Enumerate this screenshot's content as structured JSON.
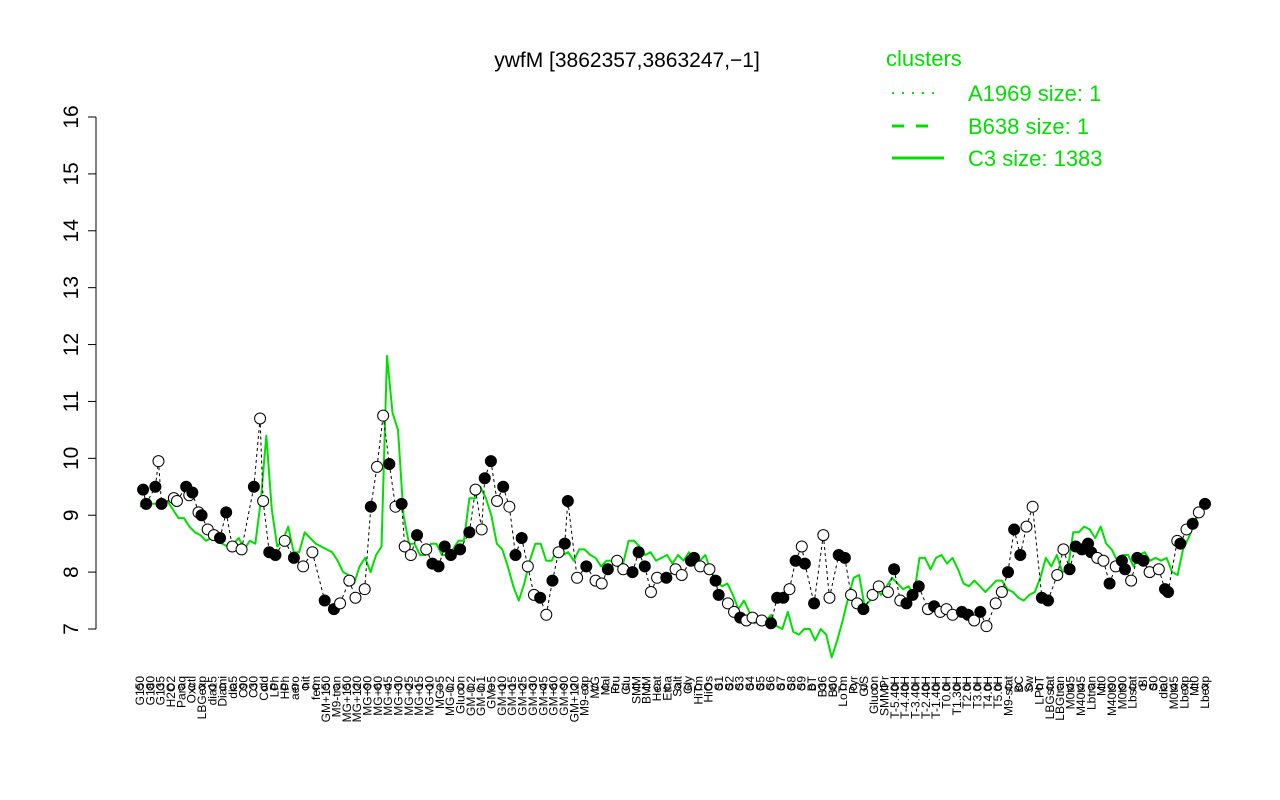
{
  "chart_data": {
    "type": "line",
    "title": "ywfM [3862357,3863247,−1]",
    "xlabel": "",
    "ylabel": "",
    "ylim": [
      7,
      16
    ],
    "yticks": [
      7,
      8,
      9,
      10,
      11,
      12,
      13,
      14,
      15,
      16
    ],
    "grid": false,
    "legend": {
      "position": "top-right",
      "title": "clusters",
      "entries": [
        {
          "label": "A1969 size: 1",
          "style": "dotted"
        },
        {
          "label": "B638 size: 1",
          "style": "dashed"
        },
        {
          "label": "C3 size: 1383",
          "style": "solid"
        }
      ]
    },
    "colors": {
      "series": "#00e000",
      "text": "#000000"
    },
    "x_tick_labels": [
      "G150",
      "G180",
      "G135",
      "H2O2",
      "Paraq",
      "Oxctl",
      "LBGexp",
      "dia15",
      "Diami",
      "dia5",
      "C90",
      "C30",
      "Cold",
      "LPh",
      "HPh",
      "aero",
      "nit",
      "ferm",
      "GM+150",
      "M9-tran",
      "MG+150",
      "MG+120",
      "MG+90",
      "MG+60",
      "MG+45",
      "MG+30",
      "MG+25",
      "MG+15",
      "MG+10",
      "MG+5",
      "MG-0.2",
      "Glucon",
      "GM-0.2",
      "GM-0.1",
      "GM+5",
      "GM+10",
      "GM+15",
      "GM+25",
      "GM+30",
      "GM+45",
      "GM+60",
      "GM+90",
      "GM+120",
      "M9-exp",
      "M/G",
      "Mal",
      "Fru",
      "Glu",
      "SMM",
      "BMM",
      "Heat",
      "Etha",
      "Salt",
      "Gly",
      "HiTm",
      "HiOs",
      "S1",
      "S2",
      "S3",
      "S4",
      "S5",
      "S6",
      "S7",
      "S8",
      "S9",
      "BT",
      "B36",
      "B60",
      "LoTm",
      "Pyr",
      "G/S",
      "Glucon",
      "SMMPr",
      "T-5.40H",
      "T-4.40H",
      "T-3.40H",
      "T-2.40H",
      "T-1.40H",
      "T0.0H",
      "T1.30H",
      "T2.0H",
      "T3.0H",
      "T4.0H",
      "T5.0H",
      "M9-stat",
      "BC",
      "Sw",
      "LPhT",
      "LBGstat",
      "LBGtran",
      "M0t45",
      "M40t45",
      "Lbtran",
      "Mt0",
      "M40t90",
      "M0t90",
      "Lbstat",
      "BI",
      "S0",
      "dia0",
      "M0t45",
      "Lbexp",
      "Mt0",
      "Lbexp"
    ],
    "series": [
      {
        "values": [
          9.15,
          9.2,
          9.2,
          9.2,
          9.15,
          9.25,
          9.1,
          8.95,
          8.95,
          8.8,
          8.7,
          8.65,
          8.55,
          8.6,
          8.55,
          8.5,
          8.45,
          8.5,
          8.6,
          8.4,
          8.55,
          8.5,
          9.25,
          10.4,
          9.1,
          8.45,
          8.55,
          8.8,
          8.35,
          8.35,
          8.7,
          8.6,
          8.5,
          8.45,
          8.4,
          8.35,
          8.2,
          8.0,
          7.95,
          7.8,
          8.1,
          8.25,
          8.0,
          8.3,
          8.45,
          11.8,
          10.8,
          10.5,
          9.0,
          8.5,
          8.5,
          8.3,
          8.3,
          8.5,
          8.5,
          8.3,
          8.3,
          8.4,
          8.55,
          8.55,
          9.3,
          9.3,
          9.5,
          9.3,
          9.0,
          8.5,
          8.4,
          8.1,
          7.75,
          7.5,
          7.8,
          8.2,
          8.5,
          8.5,
          8.2,
          8.2,
          8.4,
          8.3,
          8.35,
          8.2,
          8.4,
          8.4,
          8.3,
          8.25,
          8.1,
          8.2,
          8.2,
          8.1,
          8.15,
          8.55,
          8.55,
          8.45,
          8.3,
          8.35,
          8.2,
          8.25,
          8.3,
          8.15,
          8.3,
          8.2,
          8.35,
          8.2,
          8.2,
          8.3,
          8.0,
          7.85,
          7.75,
          7.8,
          7.6,
          7.35,
          7.5,
          7.3,
          7.1,
          7.2,
          7.15,
          7.25,
          7.05,
          7.0,
          7.3,
          6.95,
          6.9,
          7.0,
          7.0,
          6.8,
          7.0,
          6.9,
          6.5,
          6.8,
          7.15,
          7.55,
          7.9,
          7.95,
          7.4,
          7.5,
          7.75,
          7.6,
          7.75,
          7.9,
          7.8,
          7.7,
          7.75,
          7.6,
          8.25,
          8.25,
          8.05,
          8.25,
          8.3,
          8.15,
          8.25,
          8.05,
          7.8,
          7.75,
          7.85,
          7.75,
          7.65,
          7.75,
          7.85,
          7.85,
          7.7,
          7.65,
          7.55,
          7.5,
          7.6,
          7.65,
          7.9,
          8.25,
          8.1,
          8.3,
          8.0,
          8.05,
          8.7,
          8.7,
          8.8,
          8.75,
          8.6,
          8.8,
          8.5,
          8.4,
          8.2,
          8.3,
          8.3,
          8.1,
          8.3,
          8.35,
          8.2,
          8.25,
          8.2,
          8.25,
          8.0,
          7.95,
          8.4,
          8.6,
          8.85,
          9.05,
          9.25
        ]
      }
    ],
    "markers": [
      {
        "x": 1,
        "y": 9.45,
        "f": 1
      },
      {
        "x": 2,
        "y": 9.2,
        "f": 1
      },
      {
        "x": 5,
        "y": 9.5,
        "f": 1
      },
      {
        "x": 6,
        "y": 9.95,
        "f": 0
      },
      {
        "x": 7,
        "y": 9.2,
        "f": 1
      },
      {
        "x": 11,
        "y": 9.3,
        "f": 0
      },
      {
        "x": 12,
        "y": 9.25,
        "f": 0
      },
      {
        "x": 15,
        "y": 9.5,
        "f": 1
      },
      {
        "x": 16,
        "y": 9.35,
        "f": 0
      },
      {
        "x": 17,
        "y": 9.4,
        "f": 1
      },
      {
        "x": 19,
        "y": 9.05,
        "f": 0
      },
      {
        "x": 20,
        "y": 9.0,
        "f": 1
      },
      {
        "x": 22,
        "y": 8.75,
        "f": 0
      },
      {
        "x": 24,
        "y": 8.65,
        "f": 0
      },
      {
        "x": 26,
        "y": 8.6,
        "f": 1
      },
      {
        "x": 28,
        "y": 9.05,
        "f": 1
      },
      {
        "x": 30,
        "y": 8.45,
        "f": 0
      },
      {
        "x": 33,
        "y": 8.4,
        "f": 0
      },
      {
        "x": 37,
        "y": 9.5,
        "f": 1
      },
      {
        "x": 39,
        "y": 10.7,
        "f": 0
      },
      {
        "x": 40,
        "y": 9.25,
        "f": 0
      },
      {
        "x": 42,
        "y": 8.35,
        "f": 1
      },
      {
        "x": 44,
        "y": 8.3,
        "f": 1
      },
      {
        "x": 47,
        "y": 8.55,
        "f": 0
      },
      {
        "x": 50,
        "y": 8.25,
        "f": 1
      },
      {
        "x": 53,
        "y": 8.1,
        "f": 0
      },
      {
        "x": 56,
        "y": 8.35,
        "f": 0
      },
      {
        "x": 60,
        "y": 7.5,
        "f": 1
      },
      {
        "x": 63,
        "y": 7.35,
        "f": 1
      },
      {
        "x": 65,
        "y": 7.45,
        "f": 0
      },
      {
        "x": 68,
        "y": 7.85,
        "f": 0
      },
      {
        "x": 70,
        "y": 7.55,
        "f": 0
      },
      {
        "x": 73,
        "y": 7.7,
        "f": 0
      },
      {
        "x": 75,
        "y": 9.15,
        "f": 1
      },
      {
        "x": 77,
        "y": 9.85,
        "f": 0
      },
      {
        "x": 79,
        "y": 10.75,
        "f": 0
      },
      {
        "x": 81,
        "y": 9.9,
        "f": 1
      },
      {
        "x": 83,
        "y": 9.15,
        "f": 0
      },
      {
        "x": 85,
        "y": 9.2,
        "f": 1
      },
      {
        "x": 86,
        "y": 8.45,
        "f": 0
      },
      {
        "x": 88,
        "y": 8.3,
        "f": 0
      },
      {
        "x": 90,
        "y": 8.65,
        "f": 1
      },
      {
        "x": 93,
        "y": 8.4,
        "f": 0
      },
      {
        "x": 95,
        "y": 8.15,
        "f": 1
      },
      {
        "x": 97,
        "y": 8.1,
        "f": 1
      },
      {
        "x": 99,
        "y": 8.45,
        "f": 1
      },
      {
        "x": 101,
        "y": 8.3,
        "f": 1
      },
      {
        "x": 104,
        "y": 8.4,
        "f": 1
      },
      {
        "x": 107,
        "y": 8.7,
        "f": 1
      },
      {
        "x": 109,
        "y": 9.45,
        "f": 0
      },
      {
        "x": 111,
        "y": 8.75,
        "f": 0
      },
      {
        "x": 112,
        "y": 9.65,
        "f": 1
      },
      {
        "x": 114,
        "y": 9.95,
        "f": 1
      },
      {
        "x": 116,
        "y": 9.25,
        "f": 0
      },
      {
        "x": 118,
        "y": 9.5,
        "f": 1
      },
      {
        "x": 120,
        "y": 9.15,
        "f": 0
      },
      {
        "x": 122,
        "y": 8.3,
        "f": 1
      },
      {
        "x": 124,
        "y": 8.6,
        "f": 1
      },
      {
        "x": 126,
        "y": 8.1,
        "f": 0
      },
      {
        "x": 128,
        "y": 7.6,
        "f": 0
      },
      {
        "x": 130,
        "y": 7.55,
        "f": 1
      },
      {
        "x": 132,
        "y": 7.25,
        "f": 0
      },
      {
        "x": 134,
        "y": 7.85,
        "f": 1
      },
      {
        "x": 136,
        "y": 8.35,
        "f": 0
      },
      {
        "x": 138,
        "y": 8.5,
        "f": 1
      },
      {
        "x": 139,
        "y": 9.25,
        "f": 1
      },
      {
        "x": 142,
        "y": 7.9,
        "f": 0
      },
      {
        "x": 145,
        "y": 8.1,
        "f": 1
      },
      {
        "x": 148,
        "y": 7.85,
        "f": 0
      },
      {
        "x": 150,
        "y": 7.8,
        "f": 0
      },
      {
        "x": 152,
        "y": 8.05,
        "f": 1
      },
      {
        "x": 155,
        "y": 8.2,
        "f": 0
      },
      {
        "x": 157,
        "y": 8.05,
        "f": 0
      },
      {
        "x": 160,
        "y": 8.0,
        "f": 1
      },
      {
        "x": 162,
        "y": 8.35,
        "f": 1
      },
      {
        "x": 164,
        "y": 8.1,
        "f": 1
      },
      {
        "x": 166,
        "y": 7.65,
        "f": 0
      },
      {
        "x": 168,
        "y": 7.9,
        "f": 0
      },
      {
        "x": 171,
        "y": 7.9,
        "f": 1
      },
      {
        "x": 174,
        "y": 8.05,
        "f": 0
      },
      {
        "x": 176,
        "y": 7.95,
        "f": 0
      },
      {
        "x": 179,
        "y": 8.2,
        "f": 1
      },
      {
        "x": 180,
        "y": 8.25,
        "f": 1
      },
      {
        "x": 182,
        "y": 8.1,
        "f": 0
      },
      {
        "x": 185,
        "y": 8.05,
        "f": 0
      },
      {
        "x": 187,
        "y": 7.85,
        "f": 1
      },
      {
        "x": 188,
        "y": 7.6,
        "f": 1
      },
      {
        "x": 191,
        "y": 7.45,
        "f": 0
      },
      {
        "x": 193,
        "y": 7.3,
        "f": 0
      },
      {
        "x": 195,
        "y": 7.2,
        "f": 1
      },
      {
        "x": 197,
        "y": 7.15,
        "f": 0
      },
      {
        "x": 199,
        "y": 7.2,
        "f": 0
      },
      {
        "x": 202,
        "y": 7.15,
        "f": 0
      },
      {
        "x": 205,
        "y": 7.1,
        "f": 1
      },
      {
        "x": 207,
        "y": 7.55,
        "f": 1
      },
      {
        "x": 209,
        "y": 7.55,
        "f": 1
      },
      {
        "x": 211,
        "y": 7.7,
        "f": 0
      },
      {
        "x": 213,
        "y": 8.2,
        "f": 1
      },
      {
        "x": 215,
        "y": 8.45,
        "f": 0
      },
      {
        "x": 216,
        "y": 8.15,
        "f": 1
      },
      {
        "x": 219,
        "y": 7.45,
        "f": 1
      },
      {
        "x": 222,
        "y": 8.65,
        "f": 0
      },
      {
        "x": 224,
        "y": 7.55,
        "f": 0
      },
      {
        "x": 227,
        "y": 8.3,
        "f": 1
      },
      {
        "x": 229,
        "y": 8.25,
        "f": 1
      },
      {
        "x": 231,
        "y": 7.6,
        "f": 0
      },
      {
        "x": 233,
        "y": 7.45,
        "f": 0
      },
      {
        "x": 235,
        "y": 7.35,
        "f": 1
      },
      {
        "x": 238,
        "y": 7.6,
        "f": 0
      },
      {
        "x": 240,
        "y": 7.75,
        "f": 0
      },
      {
        "x": 243,
        "y": 7.65,
        "f": 0
      },
      {
        "x": 245,
        "y": 8.05,
        "f": 1
      },
      {
        "x": 247,
        "y": 7.5,
        "f": 0
      },
      {
        "x": 249,
        "y": 7.45,
        "f": 1
      },
      {
        "x": 251,
        "y": 7.6,
        "f": 1
      },
      {
        "x": 253,
        "y": 7.75,
        "f": 1
      },
      {
        "x": 256,
        "y": 7.35,
        "f": 0
      },
      {
        "x": 258,
        "y": 7.4,
        "f": 1
      },
      {
        "x": 260,
        "y": 7.3,
        "f": 0
      },
      {
        "x": 262,
        "y": 7.35,
        "f": 0
      },
      {
        "x": 264,
        "y": 7.25,
        "f": 0
      },
      {
        "x": 267,
        "y": 7.3,
        "f": 1
      },
      {
        "x": 269,
        "y": 7.25,
        "f": 1
      },
      {
        "x": 271,
        "y": 7.15,
        "f": 0
      },
      {
        "x": 273,
        "y": 7.3,
        "f": 1
      },
      {
        "x": 275,
        "y": 7.05,
        "f": 0
      },
      {
        "x": 278,
        "y": 7.45,
        "f": 0
      },
      {
        "x": 280,
        "y": 7.65,
        "f": 0
      },
      {
        "x": 282,
        "y": 8.0,
        "f": 1
      },
      {
        "x": 284,
        "y": 8.75,
        "f": 1
      },
      {
        "x": 286,
        "y": 8.3,
        "f": 1
      },
      {
        "x": 288,
        "y": 8.8,
        "f": 0
      },
      {
        "x": 290,
        "y": 9.15,
        "f": 0
      },
      {
        "x": 293,
        "y": 7.55,
        "f": 1
      },
      {
        "x": 295,
        "y": 7.5,
        "f": 1
      },
      {
        "x": 298,
        "y": 7.95,
        "f": 0
      },
      {
        "x": 300,
        "y": 8.4,
        "f": 0
      },
      {
        "x": 302,
        "y": 8.05,
        "f": 1
      },
      {
        "x": 304,
        "y": 8.45,
        "f": 1
      },
      {
        "x": 306,
        "y": 8.4,
        "f": 1
      },
      {
        "x": 308,
        "y": 8.5,
        "f": 1
      },
      {
        "x": 309,
        "y": 8.35,
        "f": 1
      },
      {
        "x": 311,
        "y": 8.25,
        "f": 0
      },
      {
        "x": 313,
        "y": 8.2,
        "f": 0
      },
      {
        "x": 315,
        "y": 7.8,
        "f": 1
      },
      {
        "x": 317,
        "y": 8.1,
        "f": 0
      },
      {
        "x": 319,
        "y": 8.2,
        "f": 1
      },
      {
        "x": 320,
        "y": 8.05,
        "f": 1
      },
      {
        "x": 322,
        "y": 7.85,
        "f": 0
      },
      {
        "x": 324,
        "y": 8.25,
        "f": 1
      },
      {
        "x": 326,
        "y": 8.2,
        "f": 1
      },
      {
        "x": 328,
        "y": 8.0,
        "f": 0
      },
      {
        "x": 331,
        "y": 8.05,
        "f": 0
      },
      {
        "x": 333,
        "y": 7.7,
        "f": 1
      },
      {
        "x": 334,
        "y": 7.65,
        "f": 1
      },
      {
        "x": 337,
        "y": 8.55,
        "f": 0
      },
      {
        "x": 338,
        "y": 8.5,
        "f": 1
      },
      {
        "x": 340,
        "y": 8.75,
        "f": 0
      },
      {
        "x": 342,
        "y": 8.85,
        "f": 1
      },
      {
        "x": 344,
        "y": 9.05,
        "f": 0
      },
      {
        "x": 346,
        "y": 9.2,
        "f": 1
      }
    ]
  }
}
